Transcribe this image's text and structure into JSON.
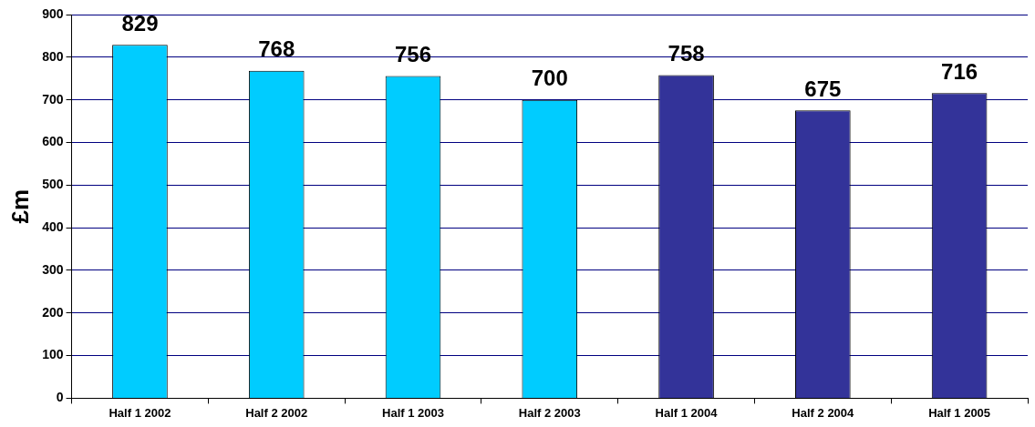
{
  "chart_data": {
    "type": "bar",
    "ylabel": "£m",
    "categories": [
      "Half 1 2002",
      "Half 2 2002",
      "Half 1 2003",
      "Half 2 2003",
      "Half 1 2004",
      "Half 2 2004",
      "Half 1 2005"
    ],
    "values": [
      829,
      768,
      756,
      700,
      758,
      675,
      716
    ],
    "colors": [
      "#00ccff",
      "#00ccff",
      "#00ccff",
      "#00ccff",
      "#333399",
      "#333399",
      "#333399"
    ],
    "ylim": [
      0,
      900
    ],
    "yticks": [
      0,
      100,
      200,
      300,
      400,
      500,
      600,
      700,
      800,
      900
    ],
    "grid": "y",
    "data_labels": true,
    "legend": false
  }
}
